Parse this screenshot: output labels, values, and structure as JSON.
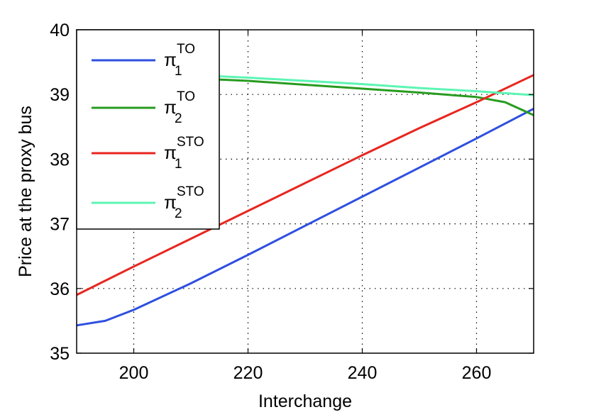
{
  "chart_data": {
    "type": "line",
    "title": "",
    "xlabel": "Interchange",
    "ylabel": "Price at the proxy bus",
    "xlim": [
      190,
      270
    ],
    "ylim": [
      35,
      40
    ],
    "xticks": [
      200,
      220,
      240,
      260
    ],
    "yticks": [
      35,
      36,
      37,
      38,
      39,
      40
    ],
    "grid": true,
    "legend_position": "top-left",
    "series": [
      {
        "name_base": "π",
        "name_sub": "1",
        "name_sup": "TO",
        "color": "#2e4fe0",
        "x": [
          190,
          195,
          200,
          210,
          220,
          230,
          240,
          250,
          260,
          270
        ],
        "y": [
          35.43,
          35.5,
          35.67,
          36.08,
          36.52,
          36.97,
          37.42,
          37.87,
          38.32,
          38.78
        ]
      },
      {
        "name_base": "π",
        "name_sub": "2",
        "name_sup": "TO",
        "color": "#279b1f",
        "x": [
          190,
          200,
          210,
          220,
          230,
          240,
          250,
          260,
          265,
          270
        ],
        "y": [
          39.28,
          39.27,
          39.25,
          39.21,
          39.15,
          39.09,
          39.03,
          38.96,
          38.88,
          38.68
        ]
      },
      {
        "name_base": "π",
        "name_sub": "1",
        "name_sup": "STO",
        "color": "#e8261e",
        "x": [
          190,
          200,
          210,
          220,
          230,
          240,
          250,
          260,
          270
        ],
        "y": [
          35.9,
          36.34,
          36.77,
          37.2,
          37.63,
          38.06,
          38.48,
          38.88,
          39.3
        ]
      },
      {
        "name_base": "π",
        "name_sub": "2",
        "name_sup": "STO",
        "color": "#5cf5b4",
        "x": [
          190,
          200,
          210,
          220,
          230,
          240,
          250,
          260,
          270
        ],
        "y": [
          39.32,
          39.31,
          39.3,
          39.26,
          39.21,
          39.16,
          39.1,
          39.05,
          38.99
        ]
      }
    ]
  }
}
